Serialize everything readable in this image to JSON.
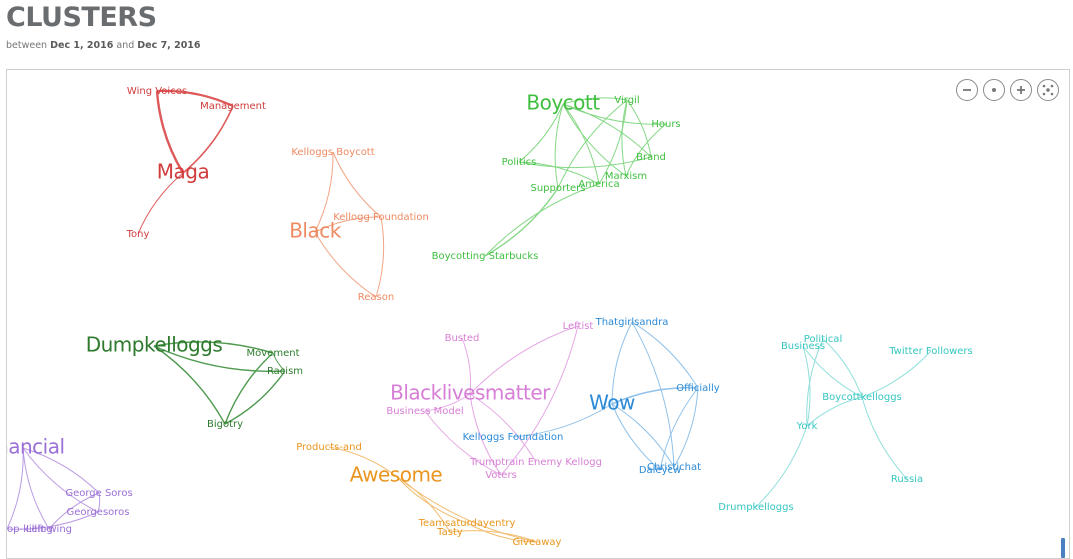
{
  "page": {
    "title": "CLUSTERS",
    "subtitle_prefix": "between",
    "date_start": "Dec 1, 2016",
    "subtitle_mid": "and",
    "date_end": "Dec 7, 2016"
  },
  "controls": {
    "zoom_out_icon": "zoom-out-icon",
    "reset_icon": "reset-icon",
    "zoom_in_icon": "zoom-in-icon",
    "fit_icon": "fit-icon"
  },
  "clusters": [
    {
      "id": "maga",
      "color": "#d13c3c",
      "edge_color": "#de5a5a",
      "nodes": [
        {
          "label": "Wing Voices",
          "size": "small"
        },
        {
          "label": "Management",
          "size": "small"
        },
        {
          "label": "Maga",
          "size": "large"
        },
        {
          "label": "Tony",
          "size": "small"
        }
      ]
    },
    {
      "id": "black",
      "color": "#ee8a62",
      "edge_color": "#f2a584",
      "nodes": [
        {
          "label": "Kelloggs Boycott",
          "size": "small"
        },
        {
          "label": "Black",
          "size": "large"
        },
        {
          "label": "Kellogg Foundation",
          "size": "small"
        },
        {
          "label": "Reason",
          "size": "small"
        }
      ]
    },
    {
      "id": "boycott",
      "color": "#3fbf3f",
      "edge_color": "#86d886",
      "nodes": [
        {
          "label": "Boycott",
          "size": "large"
        },
        {
          "label": "Virgil",
          "size": "small"
        },
        {
          "label": "Hours",
          "size": "small"
        },
        {
          "label": "Politics",
          "size": "small"
        },
        {
          "label": "Brand",
          "size": "small"
        },
        {
          "label": "Marxism",
          "size": "small"
        },
        {
          "label": "America",
          "size": "small"
        },
        {
          "label": "Supporters",
          "size": "small"
        },
        {
          "label": "Boycotting Starbucks",
          "size": "small"
        }
      ]
    },
    {
      "id": "dumpkelloggs",
      "color": "#2d7a2d",
      "edge_color": "#4f9a4f",
      "nodes": [
        {
          "label": "Dumpkelloggs",
          "size": "large"
        },
        {
          "label": "Movement",
          "size": "small"
        },
        {
          "label": "Racism",
          "size": "small"
        },
        {
          "label": "Bigotry",
          "size": "small"
        }
      ]
    },
    {
      "id": "blacklivesmatter",
      "color": "#d77ed6",
      "edge_color": "#e6a7e5",
      "nodes": [
        {
          "label": "Busted",
          "size": "small"
        },
        {
          "label": "Leftist",
          "size": "small"
        },
        {
          "label": "Blacklivesmatter",
          "size": "large"
        },
        {
          "label": "Business Model",
          "size": "small"
        },
        {
          "label": "Voters",
          "size": "small"
        },
        {
          "label": "Trumptrain Enemy Kellogg",
          "size": "small"
        }
      ]
    },
    {
      "id": "wow",
      "color": "#2b8ad6",
      "edge_color": "#8fc1ea",
      "nodes": [
        {
          "label": "Thatgirlsandra",
          "size": "small"
        },
        {
          "label": "Wow",
          "size": "large"
        },
        {
          "label": "Officially",
          "size": "small"
        },
        {
          "label": "Kelloggs Foundation",
          "size": "small"
        },
        {
          "label": "Daleycw",
          "size": "small"
        },
        {
          "label": "Christichat",
          "size": "small"
        }
      ]
    },
    {
      "id": "boycottkelloggs",
      "color": "#35c6c0",
      "edge_color": "#8fdfdb",
      "nodes": [
        {
          "label": "Political",
          "size": "small"
        },
        {
          "label": "Business",
          "size": "small"
        },
        {
          "label": "Twitter Followers",
          "size": "small"
        },
        {
          "label": "Boycottkelloggs",
          "size": "small"
        },
        {
          "label": "York",
          "size": "small"
        },
        {
          "label": "Russia",
          "size": "small"
        },
        {
          "label": "Drumpkelloggs",
          "size": "small"
        }
      ]
    },
    {
      "id": "financial",
      "color": "#9a6fd6",
      "edge_color": "#b99ae4",
      "nodes": [
        {
          "label": "Financial",
          "size": "large"
        },
        {
          "label": "George Soros",
          "size": "small"
        },
        {
          "label": "Georgesoros",
          "size": "small"
        },
        {
          "label": "op-killing",
          "size": "small"
        },
        {
          "label": "Left-wing",
          "size": "small"
        }
      ]
    },
    {
      "id": "awesome",
      "color": "#e8961f",
      "edge_color": "#f2bd6f",
      "nodes": [
        {
          "label": "Products-and",
          "size": "small"
        },
        {
          "label": "Awesome",
          "size": "large"
        },
        {
          "label": "Teamsaturdayentry",
          "size": "small"
        },
        {
          "label": "Tasty",
          "size": "small"
        },
        {
          "label": "Giveaway",
          "size": "small"
        }
      ]
    }
  ]
}
